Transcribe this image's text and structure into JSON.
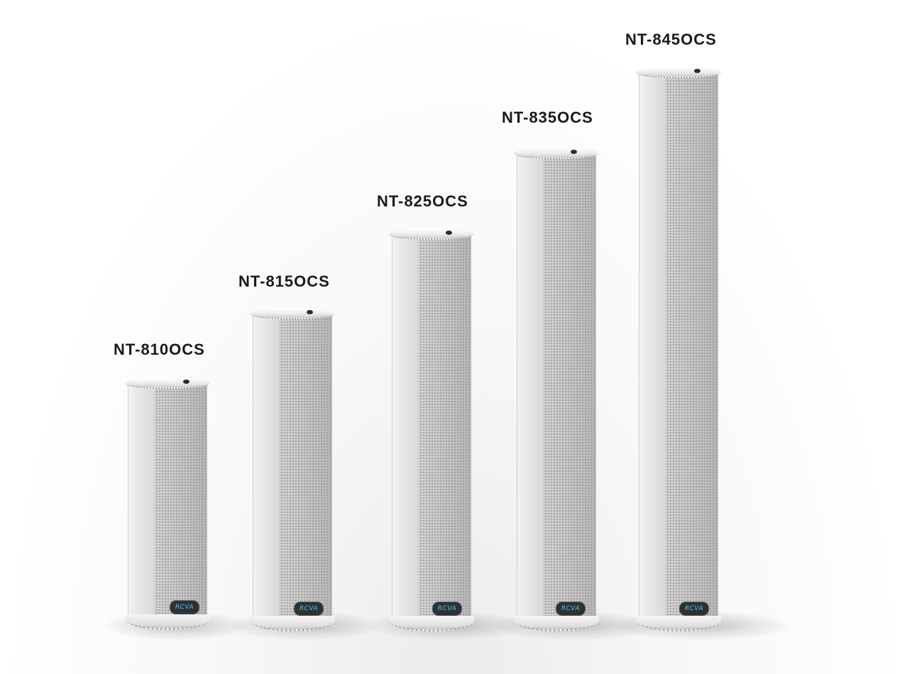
{
  "products": [
    {
      "model": "NT-810OCS",
      "brand": "RCVA"
    },
    {
      "model": "NT-815OCS",
      "brand": "RCVA"
    },
    {
      "model": "NT-825OCS",
      "brand": "RCVA"
    },
    {
      "model": "NT-835OCS",
      "brand": "RCVA"
    },
    {
      "model": "NT-845OCS",
      "brand": "RCVA"
    }
  ]
}
